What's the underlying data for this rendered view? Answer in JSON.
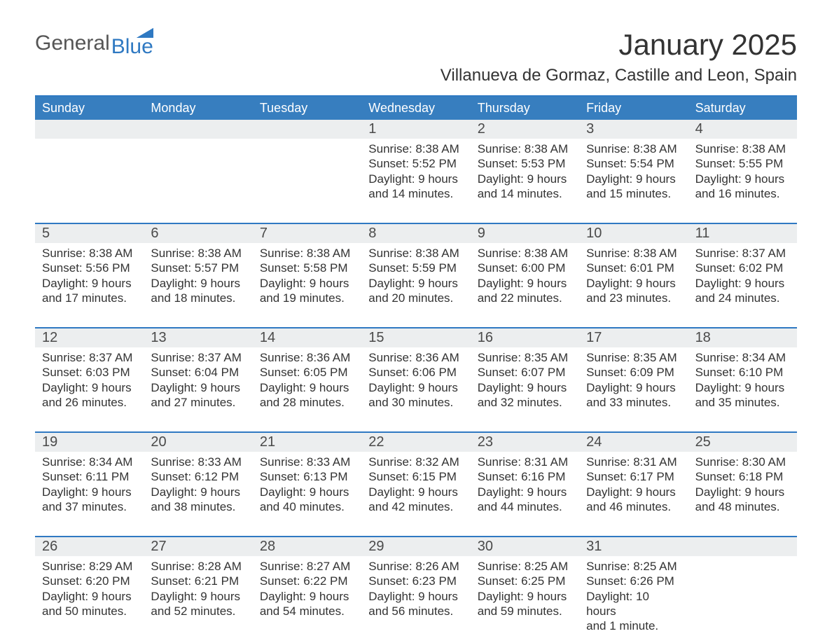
{
  "brand": {
    "general": "General",
    "blue": "Blue"
  },
  "title": "January 2025",
  "location": "Villanueva de Gormaz, Castille and Leon, Spain",
  "colors": {
    "header_bg": "#377ebf",
    "header_text": "#ffffff",
    "rule": "#2f79c2",
    "daynum_bg": "#eceeef",
    "text": "#333333",
    "background": "#ffffff"
  },
  "day_names": [
    "Sunday",
    "Monday",
    "Tuesday",
    "Wednesday",
    "Thursday",
    "Friday",
    "Saturday"
  ],
  "weeks": [
    [
      null,
      null,
      null,
      {
        "n": "1",
        "sunrise": "Sunrise: 8:38 AM",
        "sunset": "Sunset: 5:52 PM",
        "day1": "Daylight: 9 hours",
        "day2": "and 14 minutes."
      },
      {
        "n": "2",
        "sunrise": "Sunrise: 8:38 AM",
        "sunset": "Sunset: 5:53 PM",
        "day1": "Daylight: 9 hours",
        "day2": "and 14 minutes."
      },
      {
        "n": "3",
        "sunrise": "Sunrise: 8:38 AM",
        "sunset": "Sunset: 5:54 PM",
        "day1": "Daylight: 9 hours",
        "day2": "and 15 minutes."
      },
      {
        "n": "4",
        "sunrise": "Sunrise: 8:38 AM",
        "sunset": "Sunset: 5:55 PM",
        "day1": "Daylight: 9 hours",
        "day2": "and 16 minutes."
      }
    ],
    [
      {
        "n": "5",
        "sunrise": "Sunrise: 8:38 AM",
        "sunset": "Sunset: 5:56 PM",
        "day1": "Daylight: 9 hours",
        "day2": "and 17 minutes."
      },
      {
        "n": "6",
        "sunrise": "Sunrise: 8:38 AM",
        "sunset": "Sunset: 5:57 PM",
        "day1": "Daylight: 9 hours",
        "day2": "and 18 minutes."
      },
      {
        "n": "7",
        "sunrise": "Sunrise: 8:38 AM",
        "sunset": "Sunset: 5:58 PM",
        "day1": "Daylight: 9 hours",
        "day2": "and 19 minutes."
      },
      {
        "n": "8",
        "sunrise": "Sunrise: 8:38 AM",
        "sunset": "Sunset: 5:59 PM",
        "day1": "Daylight: 9 hours",
        "day2": "and 20 minutes."
      },
      {
        "n": "9",
        "sunrise": "Sunrise: 8:38 AM",
        "sunset": "Sunset: 6:00 PM",
        "day1": "Daylight: 9 hours",
        "day2": "and 22 minutes."
      },
      {
        "n": "10",
        "sunrise": "Sunrise: 8:38 AM",
        "sunset": "Sunset: 6:01 PM",
        "day1": "Daylight: 9 hours",
        "day2": "and 23 minutes."
      },
      {
        "n": "11",
        "sunrise": "Sunrise: 8:37 AM",
        "sunset": "Sunset: 6:02 PM",
        "day1": "Daylight: 9 hours",
        "day2": "and 24 minutes."
      }
    ],
    [
      {
        "n": "12",
        "sunrise": "Sunrise: 8:37 AM",
        "sunset": "Sunset: 6:03 PM",
        "day1": "Daylight: 9 hours",
        "day2": "and 26 minutes."
      },
      {
        "n": "13",
        "sunrise": "Sunrise: 8:37 AM",
        "sunset": "Sunset: 6:04 PM",
        "day1": "Daylight: 9 hours",
        "day2": "and 27 minutes."
      },
      {
        "n": "14",
        "sunrise": "Sunrise: 8:36 AM",
        "sunset": "Sunset: 6:05 PM",
        "day1": "Daylight: 9 hours",
        "day2": "and 28 minutes."
      },
      {
        "n": "15",
        "sunrise": "Sunrise: 8:36 AM",
        "sunset": "Sunset: 6:06 PM",
        "day1": "Daylight: 9 hours",
        "day2": "and 30 minutes."
      },
      {
        "n": "16",
        "sunrise": "Sunrise: 8:35 AM",
        "sunset": "Sunset: 6:07 PM",
        "day1": "Daylight: 9 hours",
        "day2": "and 32 minutes."
      },
      {
        "n": "17",
        "sunrise": "Sunrise: 8:35 AM",
        "sunset": "Sunset: 6:09 PM",
        "day1": "Daylight: 9 hours",
        "day2": "and 33 minutes."
      },
      {
        "n": "18",
        "sunrise": "Sunrise: 8:34 AM",
        "sunset": "Sunset: 6:10 PM",
        "day1": "Daylight: 9 hours",
        "day2": "and 35 minutes."
      }
    ],
    [
      {
        "n": "19",
        "sunrise": "Sunrise: 8:34 AM",
        "sunset": "Sunset: 6:11 PM",
        "day1": "Daylight: 9 hours",
        "day2": "and 37 minutes."
      },
      {
        "n": "20",
        "sunrise": "Sunrise: 8:33 AM",
        "sunset": "Sunset: 6:12 PM",
        "day1": "Daylight: 9 hours",
        "day2": "and 38 minutes."
      },
      {
        "n": "21",
        "sunrise": "Sunrise: 8:33 AM",
        "sunset": "Sunset: 6:13 PM",
        "day1": "Daylight: 9 hours",
        "day2": "and 40 minutes."
      },
      {
        "n": "22",
        "sunrise": "Sunrise: 8:32 AM",
        "sunset": "Sunset: 6:15 PM",
        "day1": "Daylight: 9 hours",
        "day2": "and 42 minutes."
      },
      {
        "n": "23",
        "sunrise": "Sunrise: 8:31 AM",
        "sunset": "Sunset: 6:16 PM",
        "day1": "Daylight: 9 hours",
        "day2": "and 44 minutes."
      },
      {
        "n": "24",
        "sunrise": "Sunrise: 8:31 AM",
        "sunset": "Sunset: 6:17 PM",
        "day1": "Daylight: 9 hours",
        "day2": "and 46 minutes."
      },
      {
        "n": "25",
        "sunrise": "Sunrise: 8:30 AM",
        "sunset": "Sunset: 6:18 PM",
        "day1": "Daylight: 9 hours",
        "day2": "and 48 minutes."
      }
    ],
    [
      {
        "n": "26",
        "sunrise": "Sunrise: 8:29 AM",
        "sunset": "Sunset: 6:20 PM",
        "day1": "Daylight: 9 hours",
        "day2": "and 50 minutes."
      },
      {
        "n": "27",
        "sunrise": "Sunrise: 8:28 AM",
        "sunset": "Sunset: 6:21 PM",
        "day1": "Daylight: 9 hours",
        "day2": "and 52 minutes."
      },
      {
        "n": "28",
        "sunrise": "Sunrise: 8:27 AM",
        "sunset": "Sunset: 6:22 PM",
        "day1": "Daylight: 9 hours",
        "day2": "and 54 minutes."
      },
      {
        "n": "29",
        "sunrise": "Sunrise: 8:26 AM",
        "sunset": "Sunset: 6:23 PM",
        "day1": "Daylight: 9 hours",
        "day2": "and 56 minutes."
      },
      {
        "n": "30",
        "sunrise": "Sunrise: 8:25 AM",
        "sunset": "Sunset: 6:25 PM",
        "day1": "Daylight: 9 hours",
        "day2": "and 59 minutes."
      },
      {
        "n": "31",
        "sunrise": "Sunrise: 8:25 AM",
        "sunset": "Sunset: 6:26 PM",
        "day1": "Daylight: 10 hours",
        "day2": "and 1 minute."
      },
      null
    ]
  ]
}
